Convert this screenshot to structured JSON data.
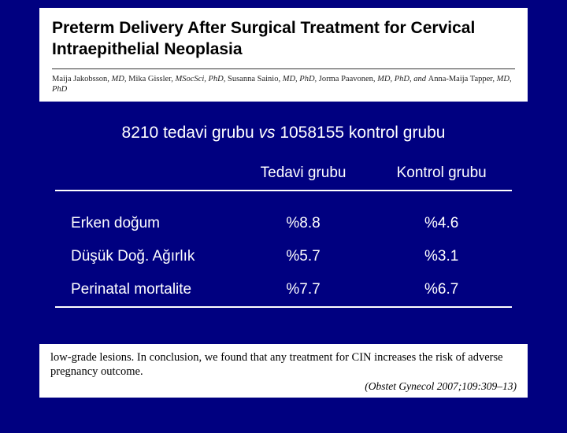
{
  "header": {
    "title": "Preterm Delivery After Surgical Treatment for Cervical Intraepithelial Neoplasia",
    "authors_html": "Maija Jakobsson, MD, Mika Gissler, MSocSci, PhD, Susanna Sainio, MD, PhD, Jorma Paavonen, MD, PhD, and Anna-Maija Tapper, MD, PhD"
  },
  "subtitle": {
    "left": "8210 tedavi grubu ",
    "italic": "vs",
    "right": " 1058155 kontrol grubu"
  },
  "table": {
    "columns": [
      "",
      "Tedavi grubu",
      "Kontrol grubu"
    ],
    "rows": [
      {
        "label": "Erken doğum",
        "c1": "%8.8",
        "c2": "%4.6"
      },
      {
        "label": "Düşük Doğ. Ağırlık",
        "c1": "%5.7",
        "c2": "%3.1"
      },
      {
        "label": "Perinatal mortalite",
        "c1": "%7.7",
        "c2": "%6.7"
      }
    ],
    "style": {
      "text_color": "#ffffff",
      "rule_color": "#ffffff",
      "font_size": 19
    }
  },
  "footer": {
    "text": "low-grade lesions. In conclusion, we found that any treatment for CIN increases the risk of adverse pregnancy outcome.",
    "citation": "(Obstet Gynecol 2007;109:309–13)"
  },
  "colors": {
    "background": "#000080",
    "clip_bg": "#ffffff",
    "body_text": "#ffffff"
  }
}
